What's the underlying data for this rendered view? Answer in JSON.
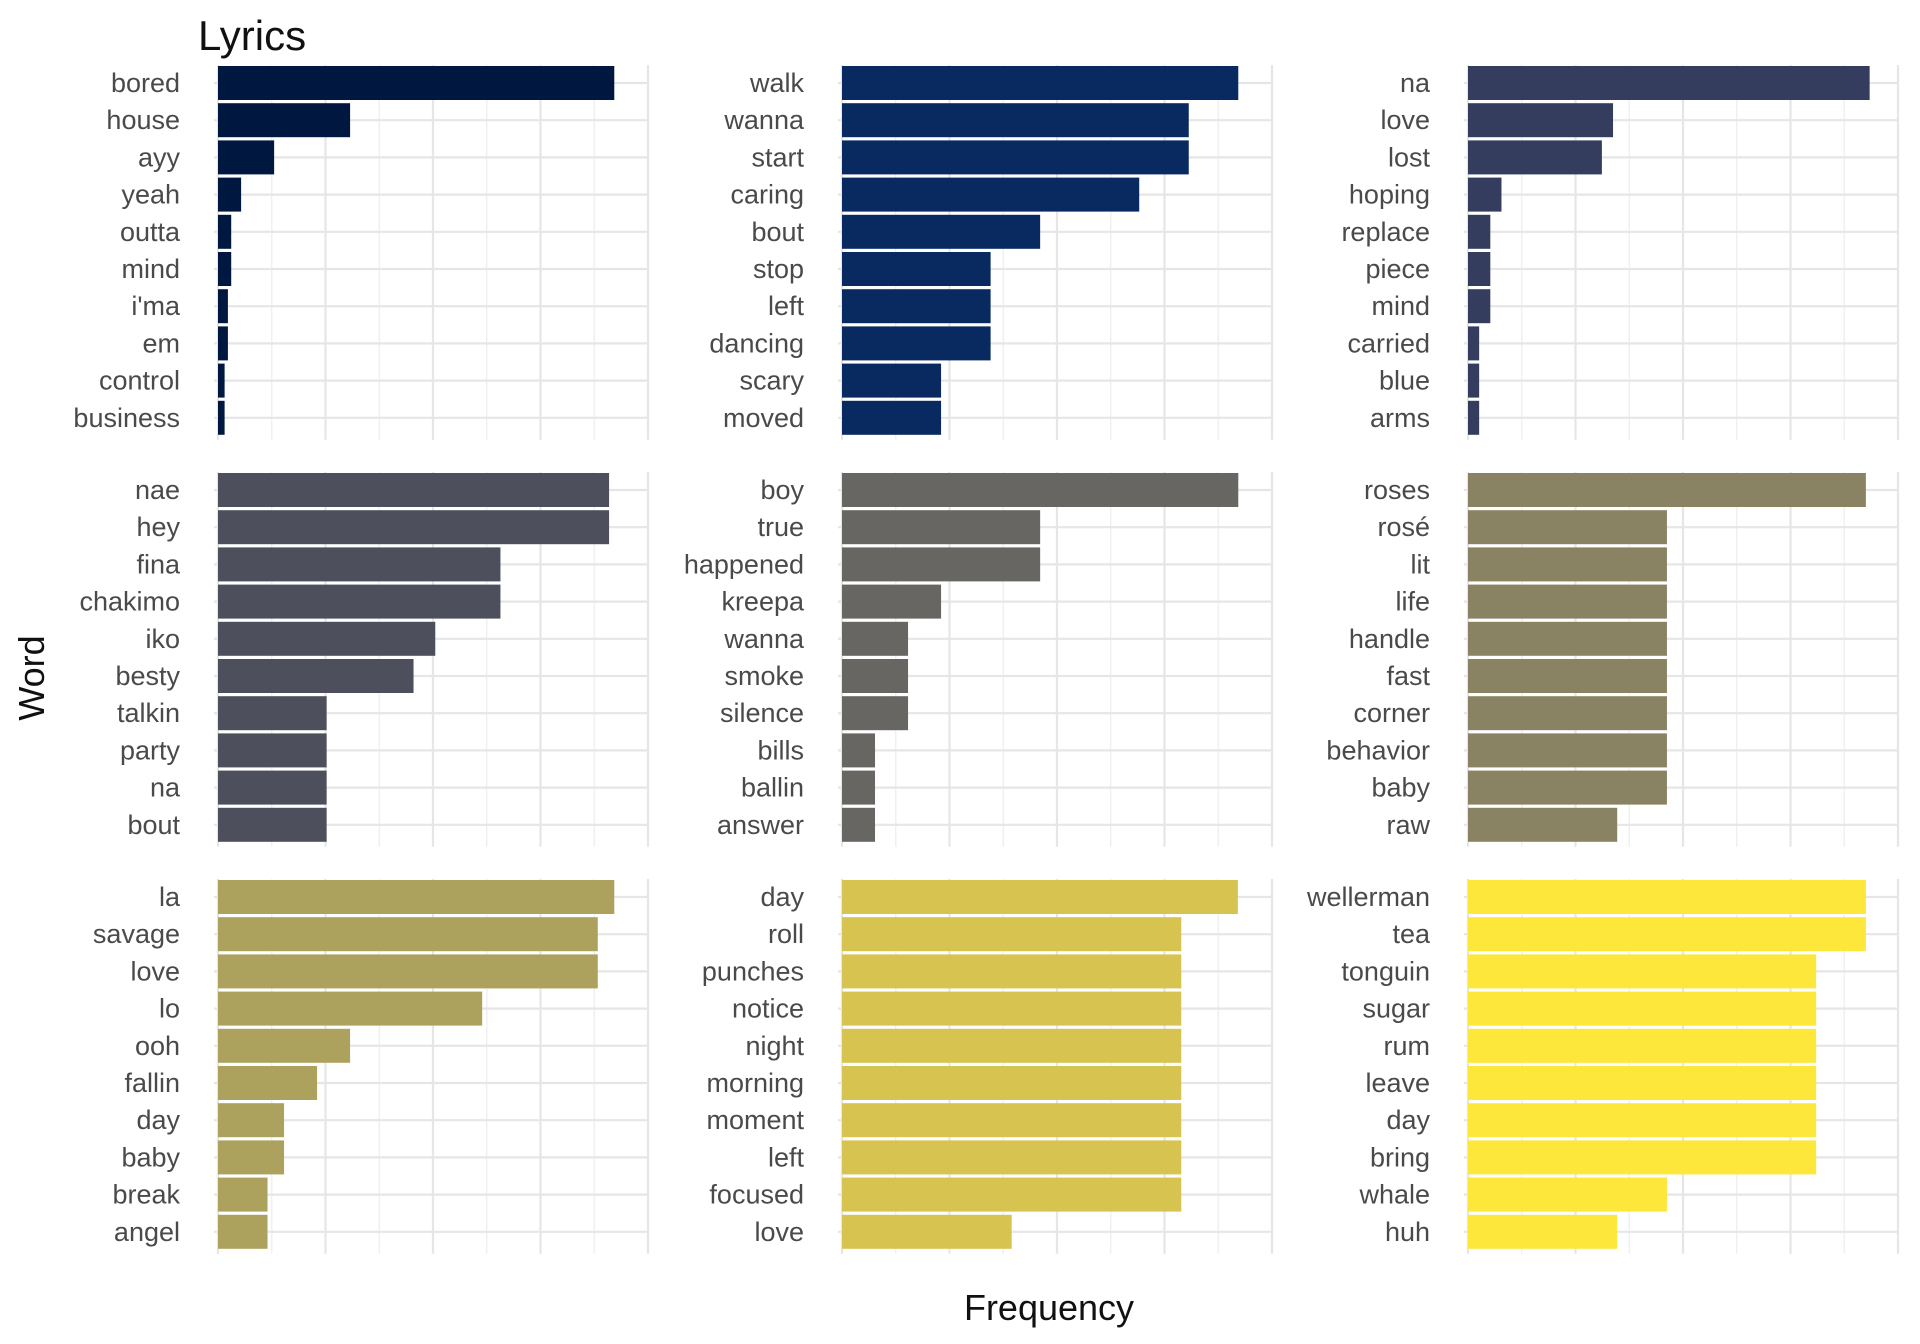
{
  "chart_data": {
    "type": "bar",
    "orientation": "horizontal",
    "layout": "facet-grid 3x3",
    "title": "Lyrics",
    "xlabel": "Frequency",
    "ylabel": "Word",
    "grid": true,
    "legend": "none",
    "x_tick_labels_shown": false,
    "panels": [
      {
        "color": "#00183f",
        "categories": [
          "bored",
          "house",
          "ayy",
          "yeah",
          "outta",
          "mind",
          "i'ma",
          "em",
          "control",
          "business"
        ],
        "values": [
          24,
          8,
          3.4,
          1.4,
          0.8,
          0.8,
          0.6,
          0.6,
          0.4,
          0.4
        ],
        "xlim": [
          0,
          25
        ]
      },
      {
        "color": "#082a60",
        "categories": [
          "walk",
          "wanna",
          "start",
          "caring",
          "bout",
          "stop",
          "left",
          "dancing",
          "scary",
          "moved"
        ],
        "values": [
          12,
          10.5,
          10.5,
          9,
          6,
          4.5,
          4.5,
          4.5,
          3,
          3
        ],
        "xlim": [
          0,
          12.5
        ]
      },
      {
        "color": "#343d5e",
        "categories": [
          "na",
          "love",
          "lost",
          "hoping",
          "replace",
          "piece",
          "mind",
          "carried",
          "blue",
          "arms"
        ],
        "values": [
          36,
          13,
          12,
          3,
          2,
          2,
          2,
          1,
          1,
          1
        ],
        "xlim": [
          0,
          37
        ]
      },
      {
        "color": "#4d4f5c",
        "categories": [
          "nae",
          "hey",
          "fina",
          "chakimo",
          "iko",
          "besty",
          "talkin",
          "party",
          "na",
          "bout"
        ],
        "values": [
          18,
          18,
          13,
          13,
          10,
          9,
          5,
          5,
          5,
          5
        ],
        "xlim": [
          0,
          19
        ]
      },
      {
        "color": "#676662",
        "categories": [
          "boy",
          "true",
          "happened",
          "kreepa",
          "wanna",
          "smoke",
          "silence",
          "bills",
          "ballin",
          "answer"
        ],
        "values": [
          12,
          6,
          6,
          3,
          2,
          2,
          2,
          1,
          1,
          1
        ],
        "xlim": [
          0,
          12.5
        ]
      },
      {
        "color": "#8a8363",
        "categories": [
          "roses",
          "rosé",
          "lit",
          "life",
          "handle",
          "fast",
          "corner",
          "behavior",
          "baby",
          "raw"
        ],
        "values": [
          8,
          4,
          4,
          4,
          4,
          4,
          4,
          4,
          4,
          3
        ],
        "xlim": [
          0,
          8.3
        ]
      },
      {
        "color": "#ada15e",
        "categories": [
          "la",
          "savage",
          "love",
          "lo",
          "ooh",
          "fallin",
          "day",
          "baby",
          "break",
          "angel"
        ],
        "values": [
          24,
          23,
          23,
          16,
          8,
          6,
          4,
          4,
          3,
          3
        ],
        "xlim": [
          0,
          25
        ]
      },
      {
        "color": "#d7c350",
        "categories": [
          "day",
          "roll",
          "punches",
          "notice",
          "night",
          "morning",
          "moment",
          "left",
          "focused",
          "love"
        ],
        "values": [
          7,
          6,
          6,
          6,
          6,
          6,
          6,
          6,
          6,
          3
        ],
        "xlim": [
          0,
          7.3
        ]
      },
      {
        "color": "#fde73b",
        "categories": [
          "wellerman",
          "tea",
          "tonguin",
          "sugar",
          "rum",
          "leave",
          "day",
          "bring",
          "whale",
          "huh"
        ],
        "values": [
          8,
          8,
          7,
          7,
          7,
          7,
          7,
          7,
          4,
          3
        ],
        "xlim": [
          0,
          8.3
        ]
      }
    ]
  }
}
